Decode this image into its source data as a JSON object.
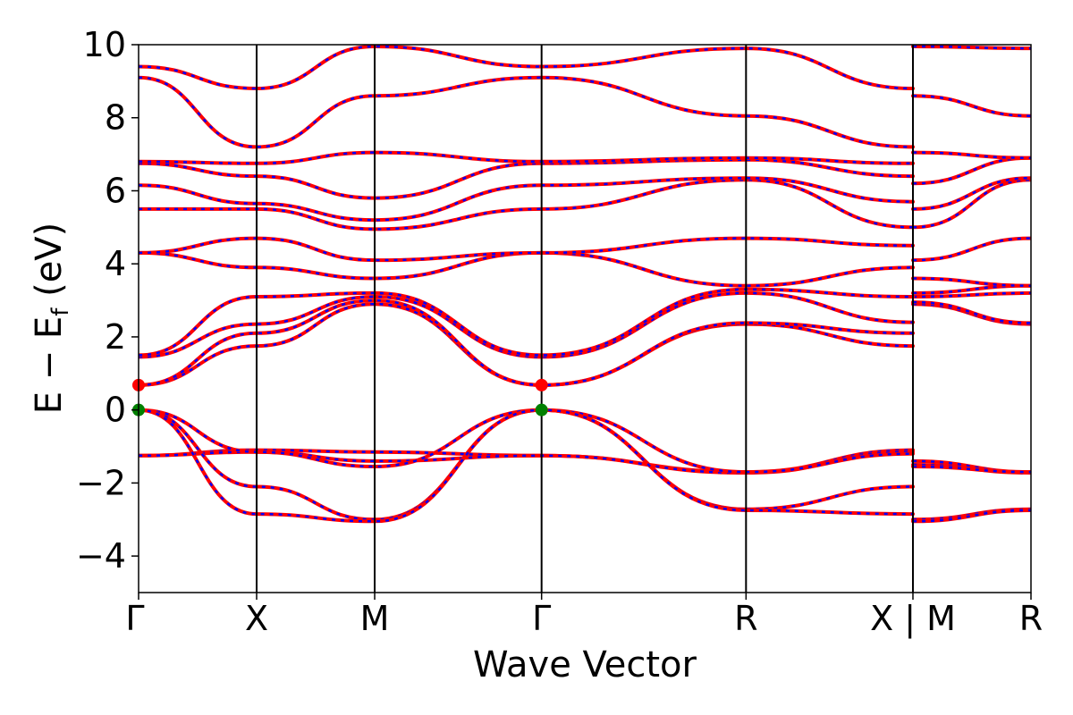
{
  "chart_data": {
    "type": "line",
    "xlabel": "Wave Vector",
    "ylabel_main": "E − E",
    "ylabel_sub": "f",
    "ylabel_unit": " (eV)",
    "ylim": [
      -5,
      10
    ],
    "yticks": [
      -4,
      -2,
      0,
      2,
      4,
      6,
      8,
      10
    ],
    "ytick_labels": [
      "−4",
      "−2",
      "0",
      "2",
      "4",
      "6",
      "8",
      "10"
    ],
    "kpoints": [
      {
        "label": "Γ",
        "k": 0.0
      },
      {
        "label": "X",
        "k": 0.5
      },
      {
        "label": "M",
        "k": 1.0
      },
      {
        "label": "Γ",
        "k": 1.707
      },
      {
        "label": "R",
        "k": 2.573
      },
      {
        "label": "X | M",
        "k": 3.28
      },
      {
        "label": "R",
        "k": 3.78
      }
    ],
    "grid": false,
    "line_color_solid": "#ff0000",
    "line_color_dashed": "#0000ff",
    "markers": [
      {
        "name": "vbm-marker-1",
        "k": 0.0,
        "E": 0.0,
        "color": "#008000"
      },
      {
        "name": "vbm-marker-2",
        "k": 1.707,
        "E": 0.0,
        "color": "#008000"
      },
      {
        "name": "cbm-marker-1",
        "k": 0.0,
        "E": 0.68,
        "color": "#ff0000"
      },
      {
        "name": "cbm-marker-2",
        "k": 1.707,
        "E": 0.68,
        "color": "#ff0000"
      }
    ],
    "bands": [
      {
        "name": "band-v1",
        "pts": [
          [
            0,
            -1.25
          ],
          [
            0.5,
            -1.1
          ],
          [
            1.0,
            -1.15
          ],
          [
            1.707,
            -1.25
          ],
          [
            2.573,
            -1.7
          ],
          [
            3.28,
            -1.1
          ],
          [
            3.28,
            -1.4
          ],
          [
            3.78,
            -1.7
          ]
        ]
      },
      {
        "name": "band-v2",
        "pts": [
          [
            0,
            -1.25
          ],
          [
            0.5,
            -1.15
          ],
          [
            1.0,
            -1.4
          ],
          [
            1.707,
            -1.25
          ],
          [
            2.573,
            -1.72
          ],
          [
            3.28,
            -1.15
          ],
          [
            3.28,
            -1.5
          ],
          [
            3.78,
            -1.72
          ]
        ]
      },
      {
        "name": "band-v3",
        "pts": [
          [
            0,
            0.0
          ],
          [
            0.5,
            -1.15
          ],
          [
            1.0,
            -1.55
          ],
          [
            1.707,
            0.0
          ],
          [
            2.573,
            -1.7
          ],
          [
            3.28,
            -1.2
          ],
          [
            3.28,
            -1.55
          ],
          [
            3.78,
            -1.7
          ]
        ]
      },
      {
        "name": "band-v4",
        "pts": [
          [
            0,
            0.0
          ],
          [
            0.5,
            -2.1
          ],
          [
            1.0,
            -3.0
          ],
          [
            1.707,
            0.0
          ],
          [
            2.573,
            -2.72
          ],
          [
            3.28,
            -2.1
          ],
          [
            3.28,
            -3.0
          ],
          [
            3.78,
            -2.72
          ]
        ]
      },
      {
        "name": "band-v5",
        "pts": [
          [
            0,
            0.0
          ],
          [
            0.5,
            -2.85
          ],
          [
            1.0,
            -3.05
          ],
          [
            1.707,
            0.0
          ],
          [
            2.573,
            -2.75
          ],
          [
            3.28,
            -2.85
          ],
          [
            3.28,
            -3.05
          ],
          [
            3.78,
            -2.75
          ]
        ]
      },
      {
        "name": "band-c1",
        "pts": [
          [
            0,
            0.68
          ],
          [
            0.5,
            1.75
          ],
          [
            1.0,
            2.9
          ],
          [
            1.707,
            0.68
          ],
          [
            2.573,
            2.35
          ],
          [
            3.28,
            1.75
          ],
          [
            3.28,
            2.9
          ],
          [
            3.78,
            2.35
          ]
        ]
      },
      {
        "name": "band-c2",
        "pts": [
          [
            0,
            0.68
          ],
          [
            0.5,
            2.1
          ],
          [
            1.0,
            3.0
          ],
          [
            1.707,
            0.68
          ],
          [
            2.573,
            2.38
          ],
          [
            3.28,
            2.1
          ],
          [
            3.28,
            2.95
          ],
          [
            3.78,
            2.38
          ]
        ]
      },
      {
        "name": "band-c3",
        "pts": [
          [
            0,
            1.45
          ],
          [
            0.5,
            2.35
          ],
          [
            1.0,
            3.1
          ],
          [
            1.707,
            1.45
          ],
          [
            2.573,
            3.2
          ],
          [
            3.28,
            2.4
          ],
          [
            3.28,
            3.1
          ],
          [
            3.78,
            3.2
          ]
        ]
      },
      {
        "name": "band-c4",
        "pts": [
          [
            0,
            1.5
          ],
          [
            0.5,
            3.1
          ],
          [
            1.0,
            3.2
          ],
          [
            1.707,
            1.5
          ],
          [
            2.573,
            3.3
          ],
          [
            3.28,
            3.1
          ],
          [
            3.28,
            3.2
          ],
          [
            3.78,
            3.4
          ]
        ]
      },
      {
        "name": "band-c5",
        "pts": [
          [
            0,
            4.3
          ],
          [
            0.5,
            3.9
          ],
          [
            1.0,
            3.6
          ],
          [
            1.707,
            4.3
          ],
          [
            2.573,
            3.4
          ],
          [
            3.28,
            3.9
          ],
          [
            3.28,
            3.6
          ],
          [
            3.78,
            3.4
          ]
        ]
      },
      {
        "name": "band-c6",
        "pts": [
          [
            0,
            4.3
          ],
          [
            0.5,
            4.7
          ],
          [
            1.0,
            4.1
          ],
          [
            1.707,
            4.3
          ],
          [
            2.573,
            4.7
          ],
          [
            3.28,
            4.5
          ],
          [
            3.28,
            4.1
          ],
          [
            3.78,
            4.7
          ]
        ]
      },
      {
        "name": "band-c7",
        "pts": [
          [
            0,
            5.5
          ],
          [
            0.5,
            5.5
          ],
          [
            1.0,
            4.95
          ],
          [
            1.707,
            5.5
          ],
          [
            2.573,
            6.3
          ],
          [
            3.28,
            5.0
          ],
          [
            3.28,
            5.0
          ],
          [
            3.78,
            6.3
          ]
        ]
      },
      {
        "name": "band-c8",
        "pts": [
          [
            0,
            6.15
          ],
          [
            0.5,
            5.65
          ],
          [
            1.0,
            5.2
          ],
          [
            1.707,
            6.15
          ],
          [
            2.573,
            6.35
          ],
          [
            3.28,
            5.7
          ],
          [
            3.28,
            5.5
          ],
          [
            3.78,
            6.35
          ]
        ]
      },
      {
        "name": "band-c9",
        "pts": [
          [
            0,
            6.75
          ],
          [
            0.5,
            6.4
          ],
          [
            1.0,
            5.8
          ],
          [
            1.707,
            6.75
          ],
          [
            2.573,
            6.85
          ],
          [
            3.28,
            6.4
          ],
          [
            3.28,
            6.2
          ],
          [
            3.78,
            6.9
          ]
        ]
      },
      {
        "name": "band-c10",
        "pts": [
          [
            0,
            6.8
          ],
          [
            0.5,
            6.75
          ],
          [
            1.0,
            7.05
          ],
          [
            1.707,
            6.8
          ],
          [
            2.573,
            6.9
          ],
          [
            3.28,
            6.75
          ],
          [
            3.28,
            7.05
          ],
          [
            3.78,
            6.9
          ]
        ]
      },
      {
        "name": "band-c11",
        "pts": [
          [
            0,
            9.1
          ],
          [
            0.5,
            7.2
          ],
          [
            1.0,
            8.6
          ],
          [
            1.707,
            9.1
          ],
          [
            2.573,
            8.05
          ],
          [
            3.28,
            7.2
          ],
          [
            3.28,
            8.6
          ],
          [
            3.78,
            8.05
          ]
        ]
      },
      {
        "name": "band-c12",
        "pts": [
          [
            0,
            9.4
          ],
          [
            0.5,
            8.8
          ],
          [
            1.0,
            9.95
          ],
          [
            1.707,
            9.4
          ],
          [
            2.573,
            9.9
          ],
          [
            3.28,
            8.8
          ],
          [
            3.28,
            9.95
          ],
          [
            3.78,
            9.9
          ]
        ]
      }
    ]
  }
}
